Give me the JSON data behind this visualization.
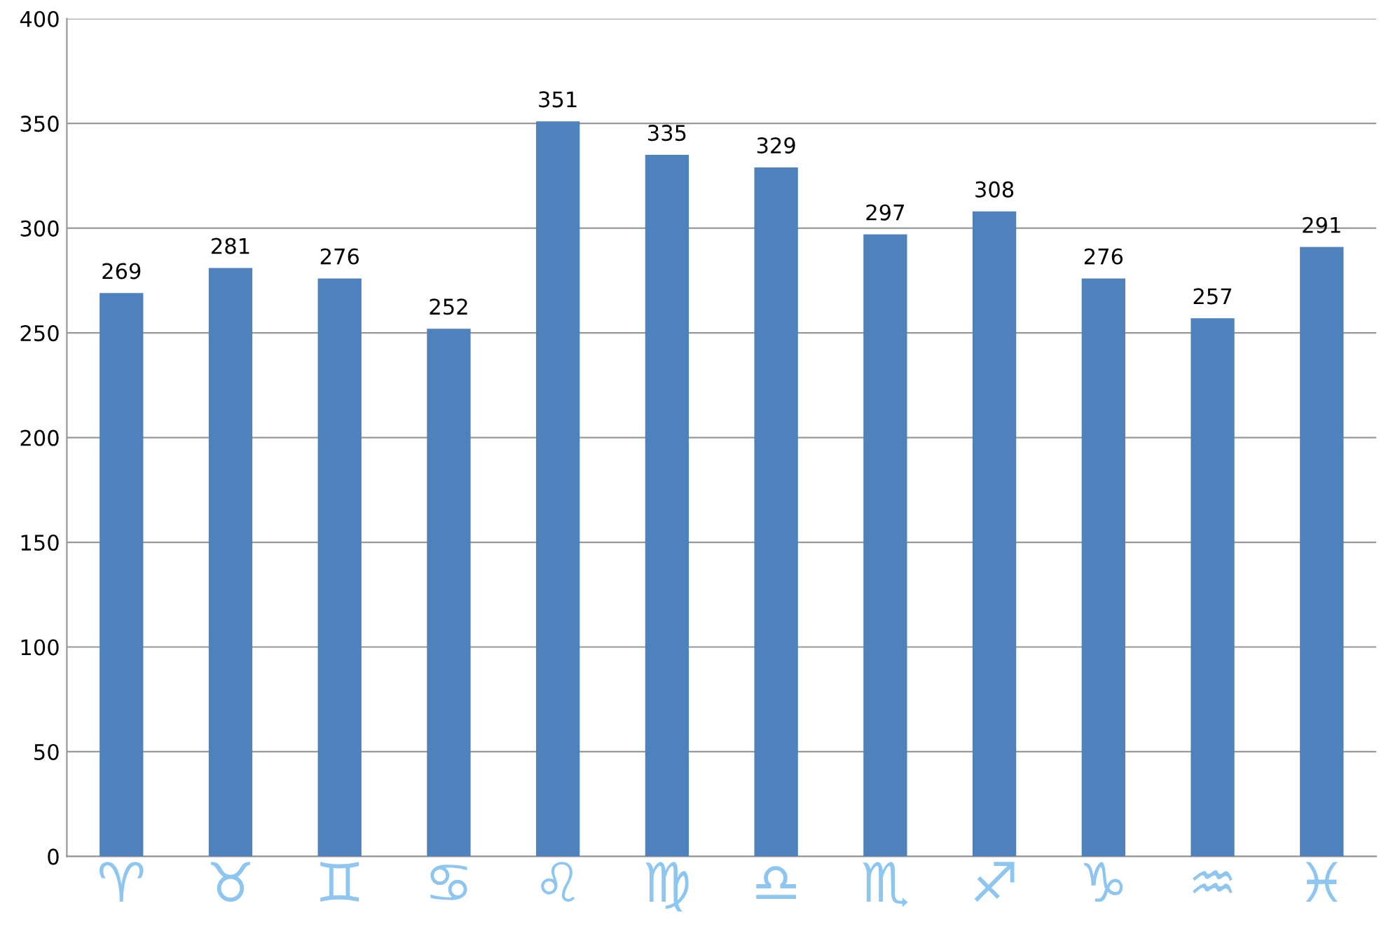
{
  "chart_data": {
    "type": "bar",
    "categories": [
      "♈",
      "♉",
      "♊",
      "♋",
      "♌",
      "♍",
      "♎",
      "♏",
      "♐",
      "♑",
      "♒",
      "♓"
    ],
    "values": [
      269,
      281,
      276,
      252,
      351,
      335,
      329,
      297,
      308,
      276,
      257,
      291
    ],
    "color": "#4f81bd",
    "ylim": [
      0,
      400
    ],
    "yticks": [
      0,
      50,
      100,
      150,
      200,
      250,
      300,
      350,
      400
    ],
    "grid": "y",
    "data_labels": true
  }
}
